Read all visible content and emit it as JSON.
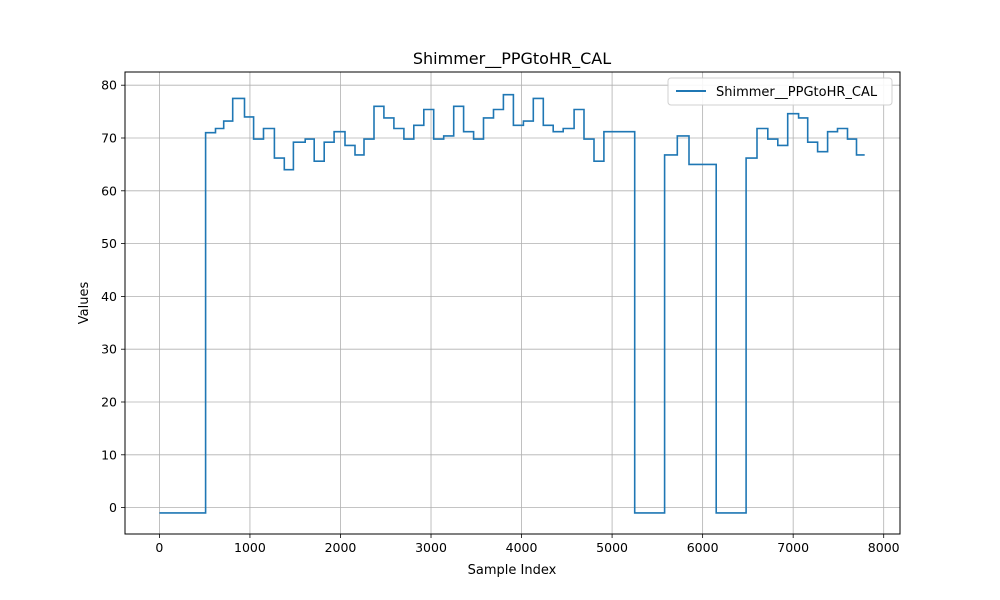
{
  "chart_data": {
    "type": "line",
    "title": "Shimmer__PPGtoHR_CAL",
    "xlabel": "Sample Index",
    "ylabel": "Values",
    "xlim": [
      -380,
      8180
    ],
    "ylim": [
      -5,
      82.5
    ],
    "xticks": [
      0,
      1000,
      2000,
      3000,
      4000,
      5000,
      6000,
      7000,
      8000
    ],
    "yticks": [
      0,
      10,
      20,
      30,
      40,
      50,
      60,
      70,
      80
    ],
    "grid": true,
    "legend": "top-right",
    "color": "#1f77b4",
    "series": [
      {
        "name": "Shimmer__PPGtoHR_CAL",
        "step": "post",
        "x": [
          0,
          510,
          620,
          710,
          810,
          940,
          1040,
          1150,
          1270,
          1380,
          1480,
          1610,
          1710,
          1820,
          1930,
          2050,
          2160,
          2260,
          2370,
          2480,
          2590,
          2700,
          2810,
          2920,
          3030,
          3140,
          3250,
          3360,
          3470,
          3580,
          3690,
          3800,
          3910,
          4020,
          4130,
          4240,
          4350,
          4460,
          4580,
          4690,
          4800,
          4910,
          5250,
          5580,
          5720,
          5850,
          6150,
          6480,
          6600,
          6720,
          6830,
          6940,
          7060,
          7160,
          7270,
          7380,
          7490,
          7600,
          7700,
          7790
        ],
        "y": [
          -1,
          71,
          71.8,
          73.2,
          77.5,
          74,
          69.8,
          71.8,
          66.2,
          64,
          69.2,
          69.8,
          65.6,
          69.2,
          71.2,
          68.6,
          66.8,
          69.8,
          76,
          73.8,
          71.8,
          69.8,
          72.4,
          75.4,
          69.8,
          70.4,
          76,
          71.2,
          69.8,
          73.8,
          75.4,
          78.2,
          72.4,
          73.2,
          77.5,
          72.4,
          71.2,
          71.8,
          75.4,
          69.8,
          65.6,
          71.2,
          -1,
          66.8,
          70.4,
          65,
          -1,
          66.2,
          71.8,
          69.8,
          68.6,
          74.6,
          73.8,
          69.2,
          67.4,
          71.2,
          71.8,
          69.8,
          66.8,
          66.8
        ]
      }
    ]
  }
}
